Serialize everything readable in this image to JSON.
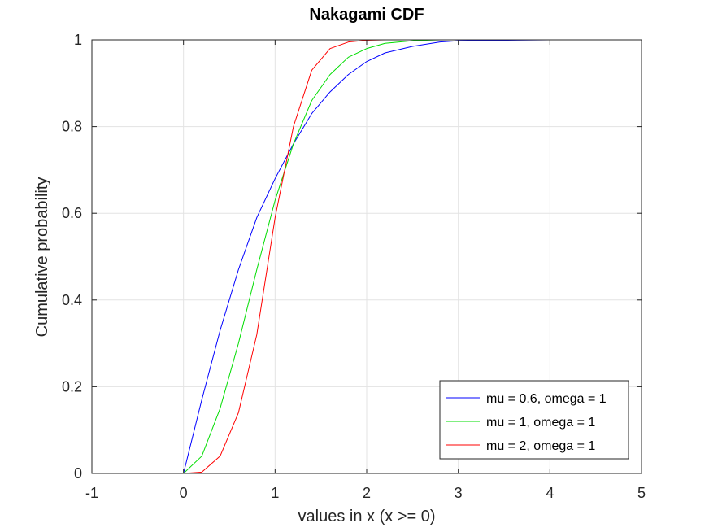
{
  "chart_data": {
    "type": "line",
    "title": "Nakagami CDF",
    "xlabel": "values in x (x >= 0)",
    "ylabel": "Cumulative probability",
    "xlim": [
      -1,
      5
    ],
    "ylim": [
      0,
      1
    ],
    "xticks": [
      -1,
      0,
      1,
      2,
      3,
      4,
      5
    ],
    "yticks": [
      0,
      0.2,
      0.4,
      0.6,
      0.8,
      1
    ],
    "xtick_labels": [
      "-1",
      "0",
      "1",
      "2",
      "3",
      "4",
      "5"
    ],
    "ytick_labels": [
      "0",
      "0.2",
      "0.4",
      "0.6",
      "0.8",
      "1"
    ],
    "grid": true,
    "legend_position": "bottom-right",
    "x": [
      -1,
      0,
      0.2,
      0.4,
      0.6,
      0.8,
      1.0,
      1.2,
      1.4,
      1.6,
      1.8,
      2.0,
      2.2,
      2.5,
      2.8,
      3.0,
      4.0,
      5.0
    ],
    "series": [
      {
        "name": "mu = 0.6, omega = 1",
        "color": "#0000ff",
        "values": [
          0,
          0,
          0.17,
          0.33,
          0.47,
          0.59,
          0.68,
          0.76,
          0.83,
          0.88,
          0.92,
          0.95,
          0.97,
          0.985,
          0.995,
          0.998,
          1,
          1
        ]
      },
      {
        "name": "mu = 1, omega = 1",
        "color": "#00dd00",
        "values": [
          0,
          0,
          0.04,
          0.15,
          0.3,
          0.47,
          0.63,
          0.76,
          0.86,
          0.92,
          0.96,
          0.98,
          0.992,
          0.998,
          1,
          1,
          1,
          1
        ]
      },
      {
        "name": "mu = 2, omega = 1",
        "color": "#ff0000",
        "values": [
          0,
          0,
          0.003,
          0.04,
          0.14,
          0.32,
          0.59,
          0.8,
          0.93,
          0.98,
          0.995,
          0.999,
          1,
          1,
          1,
          1,
          1,
          1
        ]
      }
    ]
  }
}
